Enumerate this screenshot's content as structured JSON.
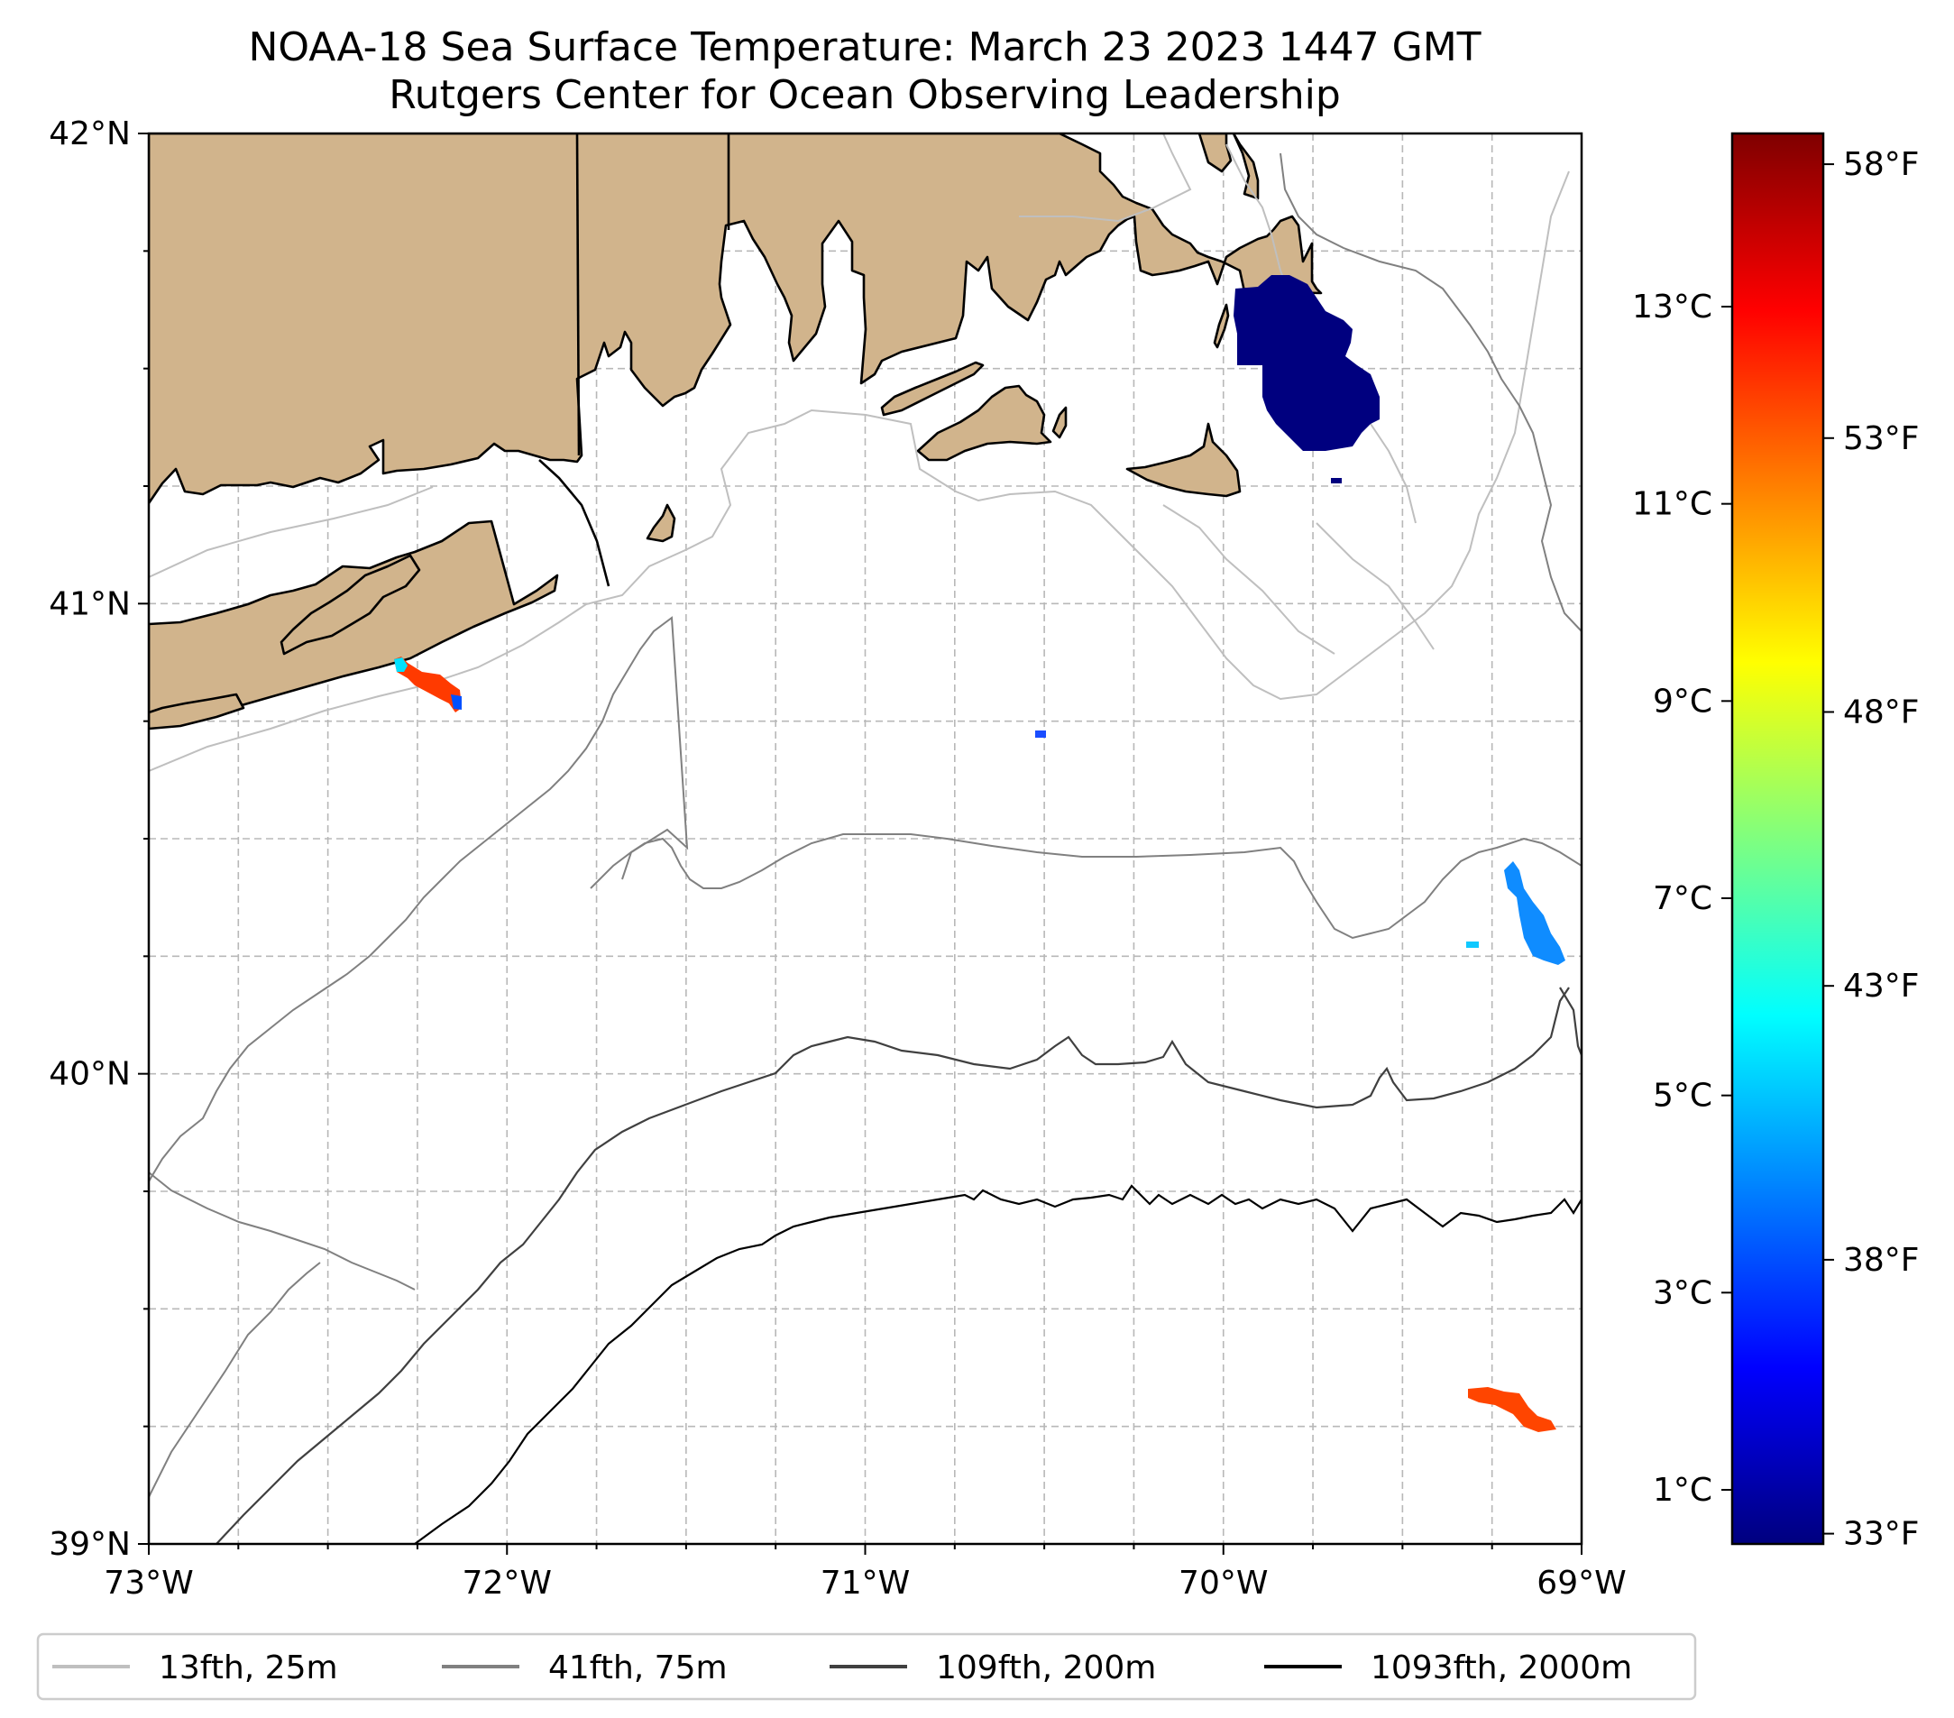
{
  "title": {
    "line1": "NOAA-18 Sea Surface Temperature: March 23 2023 1447 GMT",
    "line2": "Rutgers Center for Ocean Observing Leadership"
  },
  "map": {
    "lon_range": [
      -73,
      -69
    ],
    "lat_range": [
      39,
      42
    ],
    "lon_ticks": [
      {
        "value": -73,
        "label": "73°W"
      },
      {
        "value": -72,
        "label": "72°W"
      },
      {
        "value": -71,
        "label": "71°W"
      },
      {
        "value": -70,
        "label": "70°W"
      },
      {
        "value": -69,
        "label": "69°W"
      }
    ],
    "lat_ticks": [
      {
        "value": 42,
        "label": "42°N"
      },
      {
        "value": 41,
        "label": "41°N"
      },
      {
        "value": 40,
        "label": "40°N"
      },
      {
        "value": 39,
        "label": "39°N"
      }
    ],
    "gridlines": "dashed",
    "land_color": "#d1b48c",
    "sst_patches": [
      {
        "name": "nantucket-shoals-cold",
        "approx_temp_c": 0.5,
        "color": "#00007f"
      },
      {
        "name": "montauk-warm",
        "approx_temp_c": 12.5,
        "color": "#ff3a00"
      },
      {
        "name": "mid-shelf-speck",
        "approx_temp_c": 3.5,
        "color": "#1a4dff"
      },
      {
        "name": "shelf-edge-cool",
        "approx_temp_c": 4.5,
        "color": "#0f8cff"
      },
      {
        "name": "slope-warm",
        "approx_temp_c": 12.0,
        "color": "#ff4500"
      }
    ]
  },
  "colorbar": {
    "colormap": "jet",
    "celsius_ticks": [
      {
        "value": 13,
        "label": "13°C"
      },
      {
        "value": 11,
        "label": "11°C"
      },
      {
        "value": 9,
        "label": "9°C"
      },
      {
        "value": 7,
        "label": "7°C"
      },
      {
        "value": 5,
        "label": "5°C"
      },
      {
        "value": 3,
        "label": "3°C"
      },
      {
        "value": 1,
        "label": "1°C"
      }
    ],
    "fahrenheit_ticks": [
      {
        "value": 58,
        "label": "58°F"
      },
      {
        "value": 53,
        "label": "53°F"
      },
      {
        "value": 48,
        "label": "48°F"
      },
      {
        "value": 43,
        "label": "43°F"
      },
      {
        "value": 38,
        "label": "38°F"
      },
      {
        "value": 33,
        "label": "33°F"
      }
    ]
  },
  "legend": {
    "placement": "bottom",
    "items": [
      {
        "label": "13fth, 25m",
        "color": "#bfbfbf"
      },
      {
        "label": "41fth, 75m",
        "color": "#808080"
      },
      {
        "label": "109fth, 200m",
        "color": "#404040"
      },
      {
        "label": "1093fth, 2000m",
        "color": "#000000"
      }
    ]
  }
}
